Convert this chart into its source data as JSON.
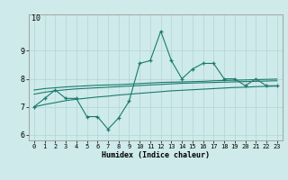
{
  "title": "",
  "xlabel": "Humidex (Indice chaleur)",
  "bg_color": "#ceeaea",
  "grid_color": "#b8d8d8",
  "line_color": "#1a7a6e",
  "x_values": [
    0,
    1,
    2,
    3,
    4,
    5,
    6,
    7,
    8,
    9,
    10,
    11,
    12,
    13,
    14,
    15,
    16,
    17,
    18,
    19,
    20,
    21,
    22,
    23
  ],
  "zigzag_y": [
    7.0,
    7.3,
    7.6,
    7.3,
    7.3,
    6.65,
    6.65,
    6.2,
    6.6,
    7.2,
    8.55,
    8.65,
    9.7,
    8.65,
    8.0,
    8.35,
    8.55,
    8.55,
    8.0,
    8.0,
    7.75,
    8.0,
    7.75,
    7.75
  ],
  "line1_y": [
    7.6,
    7.65,
    7.68,
    7.71,
    7.73,
    7.75,
    7.77,
    7.78,
    7.79,
    7.81,
    7.83,
    7.85,
    7.87,
    7.88,
    7.89,
    7.9,
    7.91,
    7.93,
    7.94,
    7.95,
    7.96,
    7.97,
    7.98,
    7.99
  ],
  "line2_y": [
    7.45,
    7.52,
    7.57,
    7.61,
    7.64,
    7.66,
    7.68,
    7.7,
    7.72,
    7.74,
    7.76,
    7.78,
    7.8,
    7.82,
    7.84,
    7.85,
    7.86,
    7.87,
    7.88,
    7.89,
    7.9,
    7.91,
    7.92,
    7.93
  ],
  "line3_y": [
    7.0,
    7.08,
    7.15,
    7.22,
    7.27,
    7.31,
    7.35,
    7.38,
    7.42,
    7.45,
    7.48,
    7.51,
    7.54,
    7.57,
    7.59,
    7.61,
    7.63,
    7.65,
    7.67,
    7.69,
    7.7,
    7.72,
    7.73,
    7.74
  ],
  "ylim": [
    5.8,
    10.3
  ],
  "yticks": [
    6,
    7,
    8,
    9
  ],
  "xticks": [
    0,
    1,
    2,
    3,
    4,
    5,
    6,
    7,
    8,
    9,
    10,
    11,
    12,
    13,
    14,
    15,
    16,
    17,
    18,
    19,
    20,
    21,
    22,
    23
  ]
}
